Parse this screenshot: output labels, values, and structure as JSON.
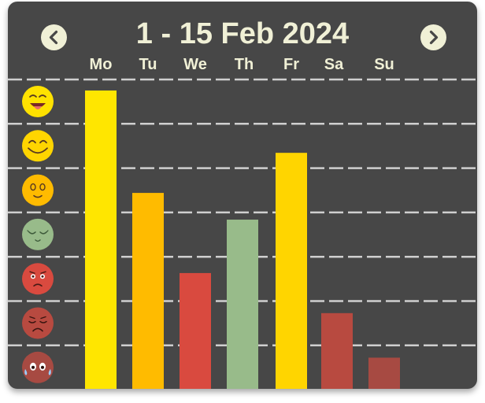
{
  "header": {
    "title": "1 - 15 Feb 2024",
    "prev_icon": "chevron-left-icon",
    "next_icon": "chevron-right-icon"
  },
  "days": [
    "Mo",
    "Tu",
    "We",
    "Th",
    "Fr",
    "Sa",
    "Su"
  ],
  "moods": [
    {
      "name": "ecstatic",
      "icon": "grinning-tongue-face-icon",
      "color": "#ffe200"
    },
    {
      "name": "happy",
      "icon": "smiling-face-icon",
      "color": "#ffd500"
    },
    {
      "name": "content",
      "icon": "calm-face-icon",
      "color": "#ffbb00"
    },
    {
      "name": "relaxed",
      "icon": "sleepy-face-icon",
      "color": "#98bb8a"
    },
    {
      "name": "worried",
      "icon": "worried-face-icon",
      "color": "#d94a3f"
    },
    {
      "name": "sad",
      "icon": "sad-face-icon",
      "color": "#b84a40"
    },
    {
      "name": "crying",
      "icon": "crying-face-icon",
      "color": "#a74a42"
    }
  ],
  "chart_data": {
    "type": "bar",
    "categories": [
      "Mo",
      "Tu",
      "We",
      "Th",
      "Fr",
      "Sa",
      "Su"
    ],
    "values": [
      6.7,
      4.4,
      2.6,
      3.8,
      5.3,
      1.7,
      0.7
    ],
    "ylim": [
      0,
      7
    ],
    "grid": true,
    "bar_colors": [
      "#ffe600",
      "#ffbb00",
      "#d94a3f",
      "#98bb8a",
      "#ffd500",
      "#b84a40",
      "#a74a42"
    ]
  }
}
